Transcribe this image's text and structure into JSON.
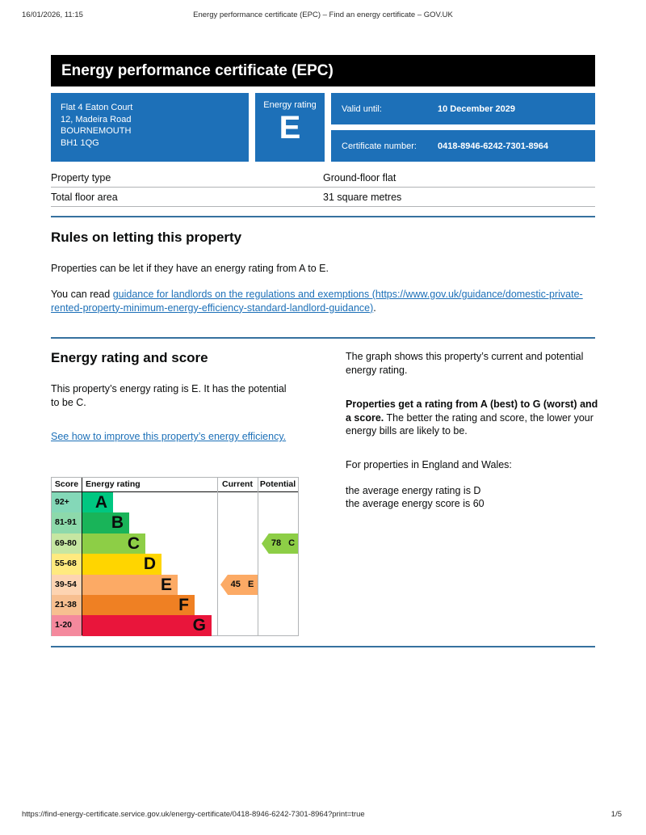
{
  "meta": {
    "datetime": "16/01/2026, 11:15",
    "doc_title": "Energy performance certificate (EPC) – Find an energy certificate – GOV.UK",
    "footer_url": "https://find-energy-certificate.service.gov.uk/energy-certificate/0418-8946-6242-7301-8964?print=true",
    "page_indicator": "1/5"
  },
  "header": {
    "title": "Energy performance certificate (EPC)"
  },
  "summary": {
    "address_lines": [
      "Flat 4 Eaton Court",
      "12, Madeira Road",
      "BOURNEMOUTH",
      "BH1 1QG"
    ],
    "energy_rating_label": "Energy rating",
    "energy_rating": "E",
    "valid_until_label": "Valid until:",
    "valid_until": "10 December 2029",
    "certificate_number_label": "Certificate number:",
    "certificate_number": "0418-8946-6242-7301-8964"
  },
  "property_details": {
    "rows": [
      {
        "label": "Property type",
        "value": "Ground-floor flat"
      },
      {
        "label": "Total floor area",
        "value": "31 square metres"
      }
    ]
  },
  "rules_section": {
    "heading": "Rules on letting this property",
    "paragraph": "Properties can be let if they have an energy rating from A to E.",
    "link_prefix": "You can read ",
    "link_text": "guidance for landlords on the regulations and exemptions (https://www.gov.uk/guidance/domestic-private-rented-property-minimum-energy-efficiency-standard-landlord-guidance)",
    "link_suffix": "."
  },
  "rating_section": {
    "heading": "Energy rating and score",
    "paragraph": "This property’s energy rating is E. It has the potential to be C.",
    "improve_link": "See how to improve this property’s energy efficiency.",
    "right": {
      "para1": "The graph shows this property’s current and potential energy rating.",
      "para2_bold": "Properties get a rating from A (best) to G (worst) and a score.",
      "para2_rest": " The better the rating and score, the lower your energy bills are likely to be.",
      "para3": "For properties in England and Wales:",
      "para4_line1": "the average energy rating is D",
      "para4_line2": "the average energy score is 60"
    }
  },
  "chart_data": {
    "type": "epc-rating-chart",
    "title": "Energy rating and score",
    "headers": {
      "score": "Score",
      "rating": "Energy rating",
      "current": "Current",
      "potential": "Potential"
    },
    "bands": [
      {
        "score": "92+",
        "letter": "A",
        "color": "#00c781",
        "tint": "#84d8b8",
        "width": 0.225
      },
      {
        "score": "81-91",
        "letter": "B",
        "color": "#19b459",
        "tint": "#8dd9ab",
        "width": 0.345
      },
      {
        "score": "69-80",
        "letter": "C",
        "color": "#8dce46",
        "tint": "#c6e6a2",
        "width": 0.462
      },
      {
        "score": "55-68",
        "letter": "D",
        "color": "#ffd500",
        "tint": "#ffea7f",
        "width": 0.58
      },
      {
        "score": "39-54",
        "letter": "E",
        "color": "#fcaa65",
        "tint": "#fdd4b2",
        "width": 0.698
      },
      {
        "score": "21-38",
        "letter": "F",
        "color": "#ef8023",
        "tint": "#f7bf90",
        "width": 0.822
      },
      {
        "score": "1-20",
        "letter": "G",
        "color": "#e9153b",
        "tint": "#f4899d",
        "width": 0.946
      }
    ],
    "current": {
      "score": 45,
      "band": "E",
      "label": "45 E"
    },
    "potential": {
      "score": 78,
      "band": "C",
      "label": "78 C"
    }
  },
  "colors": {
    "govuk_blue": "#1d70b8",
    "divider_blue": "#36719f",
    "border_gray": "#b1b4b6",
    "banner_black": "#000000"
  }
}
